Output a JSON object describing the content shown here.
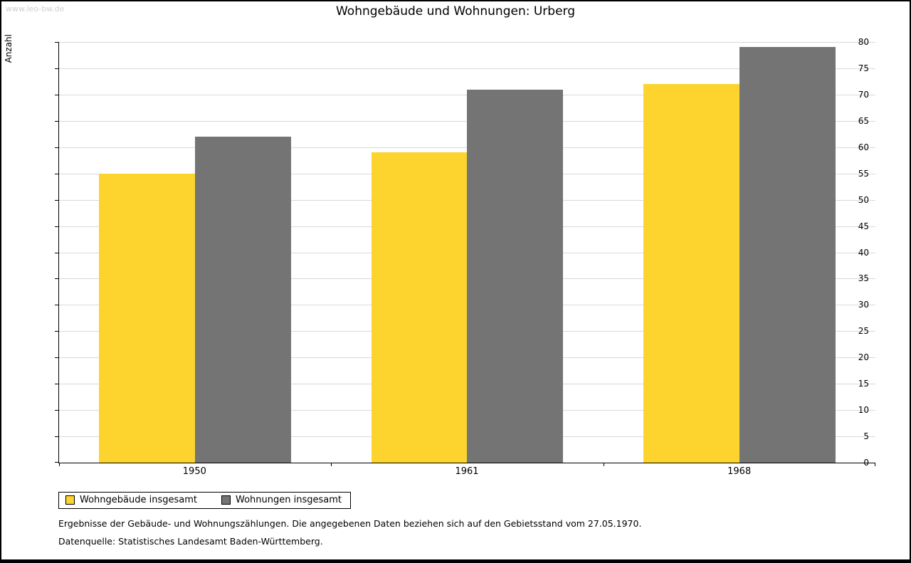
{
  "watermark": "www.leo-bw.de",
  "title": "Wohngebäude und Wohnungen: Urberg",
  "chart_data": {
    "type": "bar",
    "title": "Wohngebäude und Wohnungen: Urberg",
    "xlabel": "",
    "ylabel": "Anzahl",
    "categories": [
      "1950",
      "1961",
      "1968"
    ],
    "series": [
      {
        "name": "Wohngebäude insgesamt",
        "color": "#fcd42d",
        "values": [
          55,
          59,
          72
        ]
      },
      {
        "name": "Wohnungen insgesamt",
        "color": "#747474",
        "values": [
          62,
          71,
          79
        ]
      }
    ],
    "ylim": [
      0,
      80
    ],
    "ytick_step": 5,
    "grid": true,
    "legend_position": "bottom-left"
  },
  "footnotes": [
    "Ergebnisse der Gebäude- und Wohnungszählungen. Die angegebenen Daten beziehen sich auf den Gebietsstand vom 27.05.1970.",
    "Datenquelle: Statistisches Landesamt Baden-Württemberg."
  ]
}
